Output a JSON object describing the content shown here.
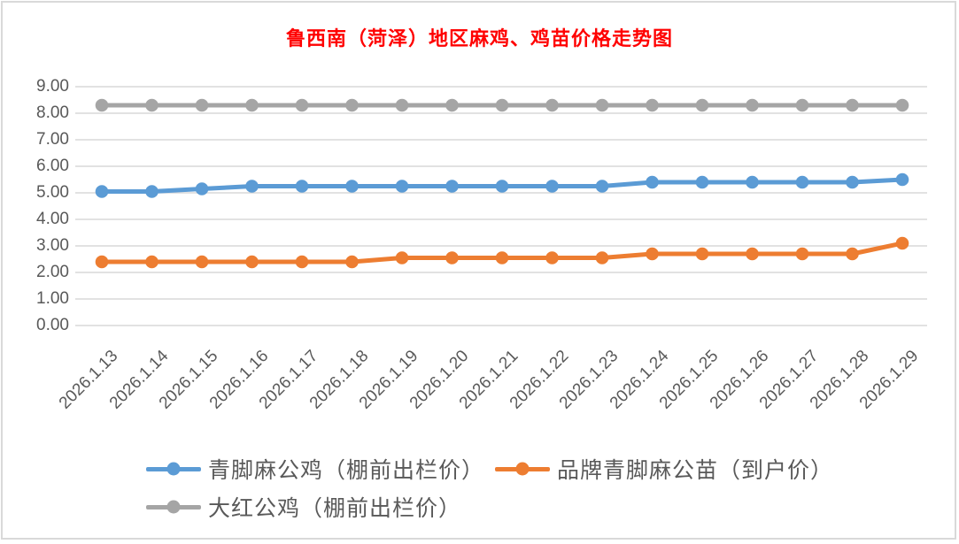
{
  "title": {
    "text": "鲁西南（菏泽）地区麻鸡、鸡苗价格走势图",
    "color": "#FF0000"
  },
  "chart_data": {
    "type": "line",
    "title": "鲁西南（菏泽）地区麻鸡、鸡苗价格走势图",
    "categories": [
      "2026.1.13",
      "2026.1.14",
      "2026.1.15",
      "2026.1.16",
      "2026.1.17",
      "2026.1.18",
      "2026.1.19",
      "2026.1.20",
      "2026.1.21",
      "2026.1.22",
      "2026.1.23",
      "2026.1.24",
      "2026.1.25",
      "2026.1.26",
      "2026.1.27",
      "2026.1.28",
      "2026.1.29"
    ],
    "series": [
      {
        "name": "青脚麻公鸡（棚前出栏价）",
        "color": "#5B9BD5",
        "values": [
          5.05,
          5.05,
          5.15,
          5.25,
          5.25,
          5.25,
          5.25,
          5.25,
          5.25,
          5.25,
          5.25,
          5.4,
          5.4,
          5.4,
          5.4,
          5.4,
          5.5
        ]
      },
      {
        "name": "品牌青脚麻公苗（到户价）",
        "color": "#ED7D31",
        "values": [
          2.4,
          2.4,
          2.4,
          2.4,
          2.4,
          2.4,
          2.55,
          2.55,
          2.55,
          2.55,
          2.55,
          2.7,
          2.7,
          2.7,
          2.7,
          2.7,
          3.1
        ]
      },
      {
        "name": "大红公鸡（棚前出栏价）",
        "color": "#A5A5A5",
        "values": [
          8.3,
          8.3,
          8.3,
          8.3,
          8.3,
          8.3,
          8.3,
          8.3,
          8.3,
          8.3,
          8.3,
          8.3,
          8.3,
          8.3,
          8.3,
          8.3,
          8.3
        ]
      }
    ],
    "xlabel": "",
    "ylabel": "",
    "ylim": [
      0,
      9
    ],
    "ytick_step": 1,
    "ytick_labels": [
      "9.00",
      "8.00",
      "7.00",
      "6.00",
      "5.00",
      "4.00",
      "3.00",
      "2.00",
      "1.00",
      "0.00"
    ],
    "grid": true,
    "grid_color": "#D9D9D9",
    "tick_text_color": "#595959",
    "legend_position": "bottom",
    "marker": "circle"
  }
}
